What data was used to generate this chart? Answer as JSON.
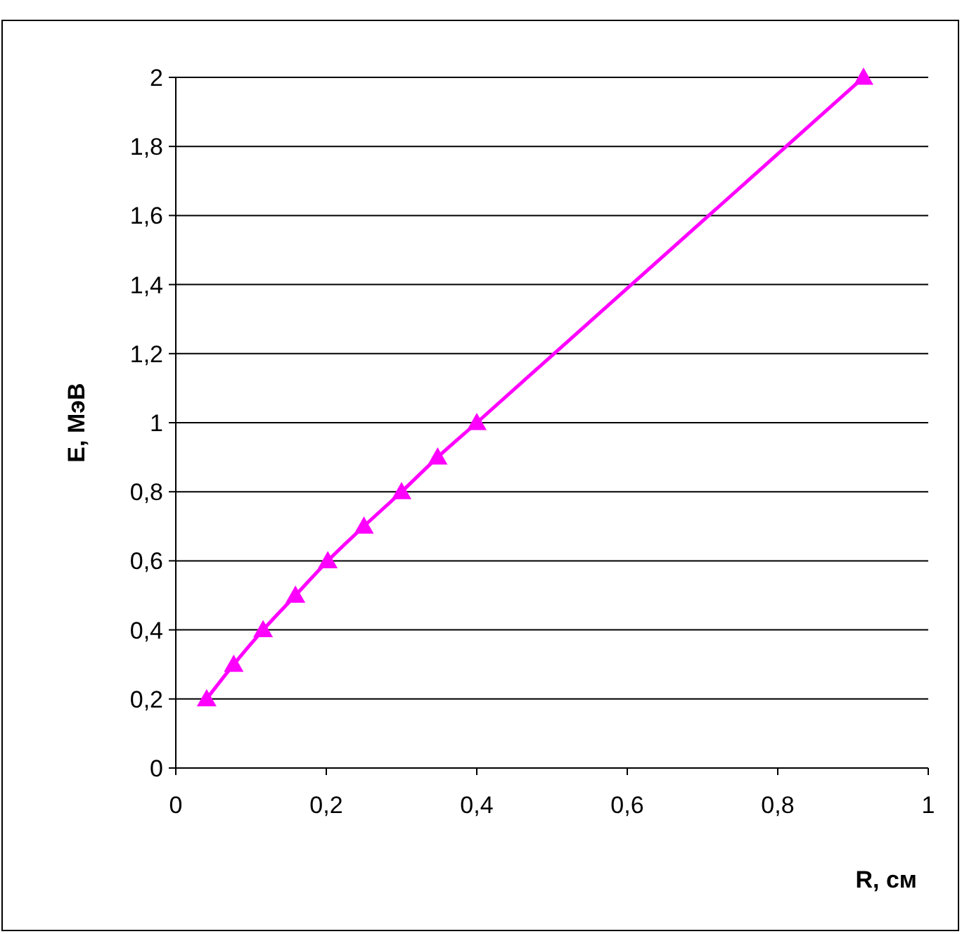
{
  "chart_data": {
    "type": "line",
    "xlabel": "R, см",
    "ylabel": "E, МэВ",
    "x": [
      0.041,
      0.077,
      0.116,
      0.159,
      0.202,
      0.25,
      0.3,
      0.348,
      0.4,
      0.914
    ],
    "series": [
      {
        "color": "#ff00ff",
        "values": [
          0.2,
          0.3,
          0.4,
          0.5,
          0.6,
          0.7,
          0.8,
          0.9,
          1.0,
          2.0
        ]
      }
    ],
    "xlim": [
      0,
      1
    ],
    "ylim": [
      0,
      2
    ],
    "xticks": [
      0,
      {
        "value": 0.2,
        "label": "0,2"
      },
      {
        "value": 0.4,
        "label": "0,4"
      },
      {
        "value": 0.6,
        "label": "0,6"
      },
      {
        "value": 0.8,
        "label": "0,8"
      },
      1
    ],
    "yticks": [
      0,
      {
        "value": 0.2,
        "label": "0,2"
      },
      {
        "value": 0.4,
        "label": "0,4"
      },
      {
        "value": 0.6,
        "label": "0,6"
      },
      {
        "value": 0.8,
        "label": "0,8"
      },
      1,
      {
        "value": 1.2,
        "label": "1,2"
      },
      {
        "value": 1.4,
        "label": "1,4"
      },
      {
        "value": 1.6,
        "label": "1,6"
      },
      {
        "value": 1.8,
        "label": "1,8"
      },
      2
    ],
    "grid": "y",
    "marker": "triangle",
    "line_style": "solid"
  }
}
